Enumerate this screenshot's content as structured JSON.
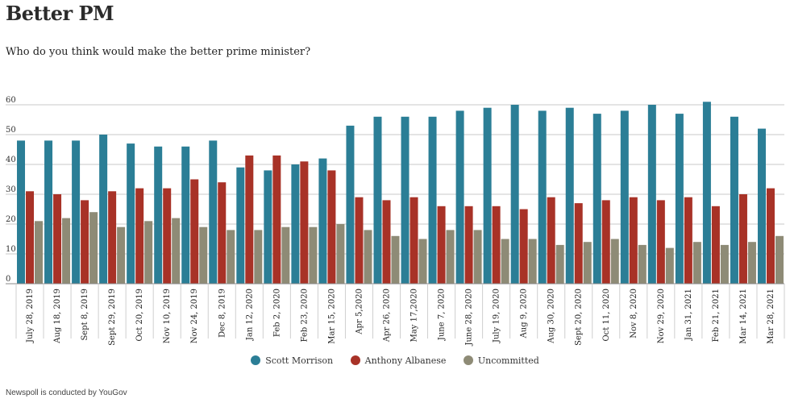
{
  "header": {
    "title": "Better PM",
    "subtitle": "Who do you think would make the better prime minister?"
  },
  "footer": {
    "source": "Newspoll is conducted by YouGov"
  },
  "chart_data": {
    "type": "bar",
    "title": "Better PM",
    "subtitle": "Who do you think would make the better prime minister?",
    "xlabel": "",
    "ylabel": "",
    "ylim": [
      0,
      60
    ],
    "yticks": [
      0,
      10,
      20,
      30,
      40,
      50,
      60
    ],
    "grid": true,
    "legend_position": "bottom",
    "categories": [
      "July 28, 2019",
      "Aug 18, 2019",
      "Sept 8, 2019",
      "Sept 29, 2019",
      "Oct 20, 2019",
      "Nov 10, 2019",
      "Nov 24, 2019",
      "Dec 8, 2019",
      "Jan 12, 2020",
      "Feb 2, 2020",
      "Feb 23, 2020",
      "Mar 15, 2020",
      "Apr 5,2020",
      "Apr 26, 2020",
      "May 17,2020",
      "June 7, 2020",
      "June 28, 2020",
      "July 19, 2020",
      "Aug 9, 2020",
      "Aug 30, 2020",
      "Sept 20, 2020",
      "Oct 11, 2020",
      "Nov 8, 2020",
      "Nov 29, 2020",
      "Jan 31, 2021",
      "Feb 21, 2021",
      "Mar 14, 2021",
      "Mar 28, 2021"
    ],
    "series": [
      {
        "name": "Scott Morrison",
        "color": "#2b7e96",
        "values": [
          48,
          48,
          48,
          50,
          47,
          46,
          46,
          48,
          39,
          38,
          40,
          42,
          53,
          56,
          56,
          56,
          58,
          59,
          60,
          58,
          59,
          57,
          58,
          60,
          57,
          61,
          56,
          52
        ]
      },
      {
        "name": "Anthony Albanese",
        "color": "#a83227",
        "values": [
          31,
          30,
          28,
          31,
          32,
          32,
          35,
          34,
          43,
          43,
          41,
          38,
          29,
          28,
          29,
          26,
          26,
          26,
          25,
          29,
          27,
          28,
          29,
          28,
          29,
          26,
          30,
          32
        ]
      },
      {
        "name": "Uncommitted",
        "color": "#8e8b76",
        "values": [
          21,
          22,
          24,
          19,
          21,
          22,
          19,
          18,
          18,
          19,
          19,
          20,
          18,
          16,
          15,
          18,
          18,
          15,
          15,
          13,
          14,
          15,
          13,
          12,
          14,
          13,
          14,
          16
        ]
      }
    ]
  }
}
